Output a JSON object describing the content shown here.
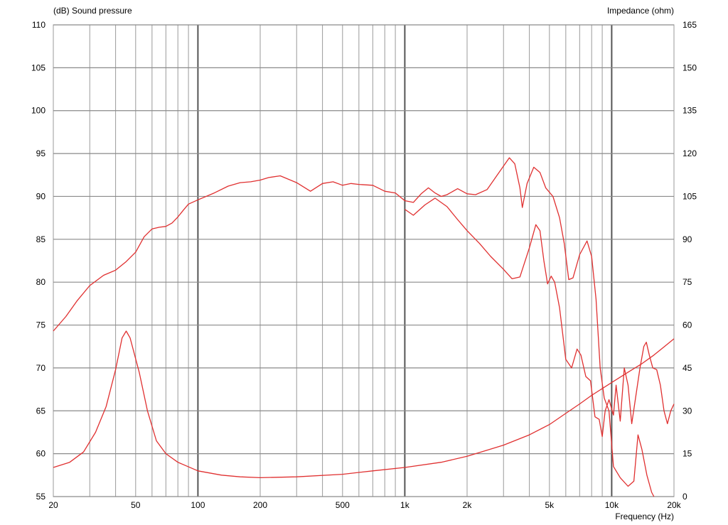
{
  "chart_data": {
    "type": "line",
    "left_axis_title": "(dB)  Sound pressure",
    "right_axis_title": "Impedance  (ohm)",
    "xlabel": "Frequency  (Hz)",
    "x_scale": "log",
    "xlim": [
      20,
      20000
    ],
    "ylim_left": [
      55,
      110
    ],
    "ylim_right": [
      0,
      165
    ],
    "grid": true,
    "line_color": "#e03030",
    "grid_color": "#888888",
    "x_ticks": [
      {
        "value": 20,
        "label": "20"
      },
      {
        "value": 50,
        "label": "50"
      },
      {
        "value": 100,
        "label": "100"
      },
      {
        "value": 200,
        "label": "200"
      },
      {
        "value": 500,
        "label": "500"
      },
      {
        "value": 1000,
        "label": "1k"
      },
      {
        "value": 2000,
        "label": "2k"
      },
      {
        "value": 5000,
        "label": "5k"
      },
      {
        "value": 10000,
        "label": "10k"
      },
      {
        "value": 20000,
        "label": "20k"
      }
    ],
    "y_left_ticks": [
      {
        "value": 110,
        "label": "110"
      },
      {
        "value": 105,
        "label": "105"
      },
      {
        "value": 100,
        "label": "100"
      },
      {
        "value": 95,
        "label": "95"
      },
      {
        "value": 90,
        "label": "90"
      },
      {
        "value": 85,
        "label": "85"
      },
      {
        "value": 80,
        "label": "80"
      },
      {
        "value": 75,
        "label": "75"
      },
      {
        "value": 70,
        "label": "70"
      },
      {
        "value": 65,
        "label": "65"
      },
      {
        "value": 60,
        "label": "60"
      },
      {
        "value": 55,
        "label": "55"
      }
    ],
    "y_right_ticks": [
      {
        "value": 165,
        "label": "165"
      },
      {
        "value": 150,
        "label": "150"
      },
      {
        "value": 135,
        "label": "135"
      },
      {
        "value": 120,
        "label": "120"
      },
      {
        "value": 105,
        "label": "105"
      },
      {
        "value": 90,
        "label": "90"
      },
      {
        "value": 75,
        "label": "75"
      },
      {
        "value": 60,
        "label": "60"
      },
      {
        "value": 45,
        "label": "45"
      },
      {
        "value": 30,
        "label": "30"
      },
      {
        "value": 15,
        "label": "15"
      },
      {
        "value": 0,
        "label": "0"
      }
    ],
    "series": [
      {
        "axis": "left",
        "points": [
          [
            20,
            74.3
          ],
          [
            23,
            76.0
          ],
          [
            26,
            77.8
          ],
          [
            30,
            79.6
          ],
          [
            35,
            80.8
          ],
          [
            40,
            81.4
          ],
          [
            45,
            82.4
          ],
          [
            50,
            83.5
          ],
          [
            55,
            85.3
          ],
          [
            60,
            86.2
          ],
          [
            65,
            86.4
          ],
          [
            70,
            86.5
          ],
          [
            75,
            86.9
          ],
          [
            80,
            87.6
          ],
          [
            85,
            88.4
          ],
          [
            90,
            89.1
          ],
          [
            100,
            89.6
          ],
          [
            120,
            90.4
          ],
          [
            140,
            91.2
          ],
          [
            160,
            91.6
          ],
          [
            180,
            91.7
          ],
          [
            200,
            91.9
          ],
          [
            220,
            92.2
          ],
          [
            250,
            92.4
          ],
          [
            300,
            91.6
          ],
          [
            350,
            90.6
          ],
          [
            400,
            91.5
          ],
          [
            450,
            91.7
          ],
          [
            500,
            91.3
          ],
          [
            550,
            91.5
          ],
          [
            600,
            91.4
          ],
          [
            700,
            91.3
          ],
          [
            800,
            90.6
          ],
          [
            900,
            90.4
          ],
          [
            1000,
            89.5
          ],
          [
            1100,
            89.3
          ],
          [
            1200,
            90.3
          ],
          [
            1300,
            91.0
          ],
          [
            1400,
            90.4
          ],
          [
            1500,
            90.0
          ],
          [
            1600,
            90.2
          ],
          [
            1800,
            90.9
          ],
          [
            2000,
            90.3
          ],
          [
            2200,
            90.2
          ],
          [
            2500,
            90.8
          ],
          [
            2800,
            92.5
          ],
          [
            3200,
            94.5
          ],
          [
            3400,
            93.8
          ],
          [
            3600,
            91.0
          ],
          [
            3700,
            88.7
          ],
          [
            3900,
            91.5
          ],
          [
            4200,
            93.4
          ],
          [
            4500,
            92.8
          ],
          [
            4800,
            91.0
          ],
          [
            5200,
            90.0
          ],
          [
            5600,
            87.5
          ],
          [
            5900,
            84.5
          ],
          [
            6200,
            80.3
          ],
          [
            6500,
            80.5
          ],
          [
            7000,
            83.2
          ],
          [
            7600,
            84.8
          ],
          [
            8000,
            83.0
          ],
          [
            8400,
            78.0
          ],
          [
            8800,
            70.0
          ],
          [
            9200,
            66.5
          ],
          [
            9700,
            65.0
          ],
          [
            10200,
            58.5
          ],
          [
            11000,
            57.2
          ],
          [
            12000,
            56.2
          ],
          [
            12800,
            56.8
          ],
          [
            13400,
            62.2
          ],
          [
            14000,
            60.5
          ],
          [
            14800,
            57.5
          ],
          [
            15600,
            55.5
          ],
          [
            16000,
            55.0
          ]
        ]
      },
      {
        "axis": "left",
        "points": [
          [
            20,
            58.4
          ],
          [
            24,
            59.0
          ],
          [
            28,
            60.2
          ],
          [
            32,
            62.5
          ],
          [
            36,
            65.5
          ],
          [
            40,
            69.8
          ],
          [
            43,
            73.5
          ],
          [
            45,
            74.3
          ],
          [
            47,
            73.5
          ],
          [
            52,
            69.5
          ],
          [
            57,
            65.0
          ],
          [
            63,
            61.5
          ],
          [
            70,
            60.0
          ],
          [
            80,
            59.0
          ],
          [
            100,
            58.0
          ],
          [
            130,
            57.5
          ],
          [
            160,
            57.3
          ],
          [
            200,
            57.2
          ],
          [
            300,
            57.3
          ],
          [
            500,
            57.6
          ],
          [
            700,
            58.0
          ],
          [
            1000,
            58.4
          ],
          [
            1500,
            59.0
          ],
          [
            2000,
            59.7
          ],
          [
            3000,
            61.0
          ],
          [
            4000,
            62.2
          ],
          [
            5000,
            63.4
          ],
          [
            6000,
            64.7
          ],
          [
            7000,
            65.8
          ],
          [
            8000,
            66.8
          ],
          [
            10000,
            68.3
          ],
          [
            12000,
            69.5
          ],
          [
            14000,
            70.5
          ],
          [
            16000,
            71.5
          ],
          [
            18000,
            72.5
          ],
          [
            20000,
            73.4
          ]
        ]
      },
      {
        "axis": "left",
        "points": [
          [
            1000,
            88.5
          ],
          [
            1100,
            87.8
          ],
          [
            1250,
            89.0
          ],
          [
            1400,
            89.8
          ],
          [
            1600,
            88.8
          ],
          [
            1800,
            87.3
          ],
          [
            2000,
            86.0
          ],
          [
            2300,
            84.5
          ],
          [
            2600,
            83.0
          ],
          [
            3000,
            81.5
          ],
          [
            3300,
            80.4
          ],
          [
            3600,
            80.6
          ],
          [
            4000,
            84.0
          ],
          [
            4300,
            86.7
          ],
          [
            4500,
            86.0
          ],
          [
            4700,
            82.5
          ],
          [
            4900,
            79.8
          ],
          [
            5100,
            80.7
          ],
          [
            5300,
            80.0
          ],
          [
            5600,
            77.0
          ],
          [
            6000,
            71.0
          ],
          [
            6400,
            70.0
          ],
          [
            6800,
            72.2
          ],
          [
            7100,
            71.5
          ],
          [
            7500,
            69.0
          ],
          [
            7900,
            68.5
          ],
          [
            8300,
            64.3
          ],
          [
            8700,
            64.0
          ],
          [
            9000,
            62.0
          ],
          [
            9300,
            65.0
          ],
          [
            9700,
            66.3
          ],
          [
            10200,
            64.5
          ],
          [
            10500,
            68.0
          ],
          [
            11000,
            63.8
          ],
          [
            11500,
            70.0
          ],
          [
            12000,
            68.0
          ],
          [
            12500,
            63.5
          ],
          [
            13000,
            66.3
          ],
          [
            13700,
            70.0
          ],
          [
            14300,
            72.5
          ],
          [
            14700,
            73.0
          ],
          [
            15200,
            71.5
          ],
          [
            15800,
            70.0
          ],
          [
            16500,
            69.8
          ],
          [
            17200,
            68.0
          ],
          [
            17900,
            65.0
          ],
          [
            18600,
            63.5
          ],
          [
            19300,
            65.0
          ],
          [
            20000,
            65.8
          ]
        ]
      }
    ]
  }
}
